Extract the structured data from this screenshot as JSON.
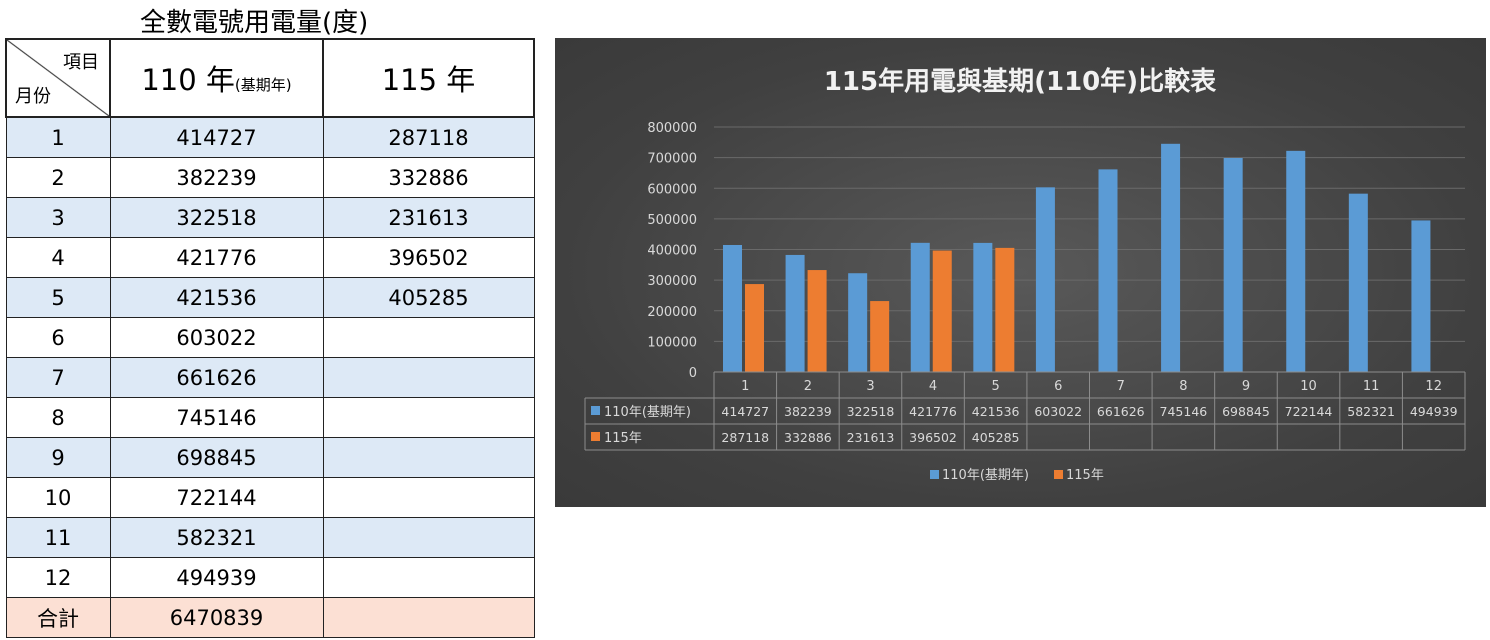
{
  "table": {
    "title": "全數電號用電量(度)",
    "header": {
      "item_label": "項目",
      "month_label": "月份",
      "col1_main": "110 年",
      "col1_sub": "(基期年)",
      "col2": "115 年"
    },
    "rows": [
      {
        "month": "1",
        "base": "414727",
        "current": "287118"
      },
      {
        "month": "2",
        "base": "382239",
        "current": "332886"
      },
      {
        "month": "3",
        "base": "322518",
        "current": "231613"
      },
      {
        "month": "4",
        "base": "421776",
        "current": "396502"
      },
      {
        "month": "5",
        "base": "421536",
        "current": "405285"
      },
      {
        "month": "6",
        "base": "603022",
        "current": ""
      },
      {
        "month": "7",
        "base": "661626",
        "current": ""
      },
      {
        "month": "8",
        "base": "745146",
        "current": ""
      },
      {
        "month": "9",
        "base": "698845",
        "current": ""
      },
      {
        "month": "10",
        "base": "722144",
        "current": ""
      },
      {
        "month": "11",
        "base": "582321",
        "current": ""
      },
      {
        "month": "12",
        "base": "494939",
        "current": ""
      }
    ],
    "total": {
      "label": "合計",
      "base": "6470839",
      "current": ""
    }
  },
  "chart_data": {
    "type": "bar",
    "title": "115年用電與基期(110年)比較表",
    "categories": [
      "1",
      "2",
      "3",
      "4",
      "5",
      "6",
      "7",
      "8",
      "9",
      "10",
      "11",
      "12"
    ],
    "series": [
      {
        "name": "110年(基期年)",
        "color": "#5b9bd5",
        "values": [
          414727,
          382239,
          322518,
          421776,
          421536,
          603022,
          661626,
          745146,
          698845,
          722144,
          582321,
          494939
        ]
      },
      {
        "name": "115年",
        "color": "#ed7d31",
        "values": [
          287118,
          332886,
          231613,
          396502,
          405285,
          null,
          null,
          null,
          null,
          null,
          null,
          null
        ]
      }
    ],
    "ylim": [
      0,
      800000
    ],
    "yticks": [
      0,
      100000,
      200000,
      300000,
      400000,
      500000,
      600000,
      700000,
      800000
    ],
    "grid": true,
    "legend": "bottom",
    "data_table": true
  }
}
